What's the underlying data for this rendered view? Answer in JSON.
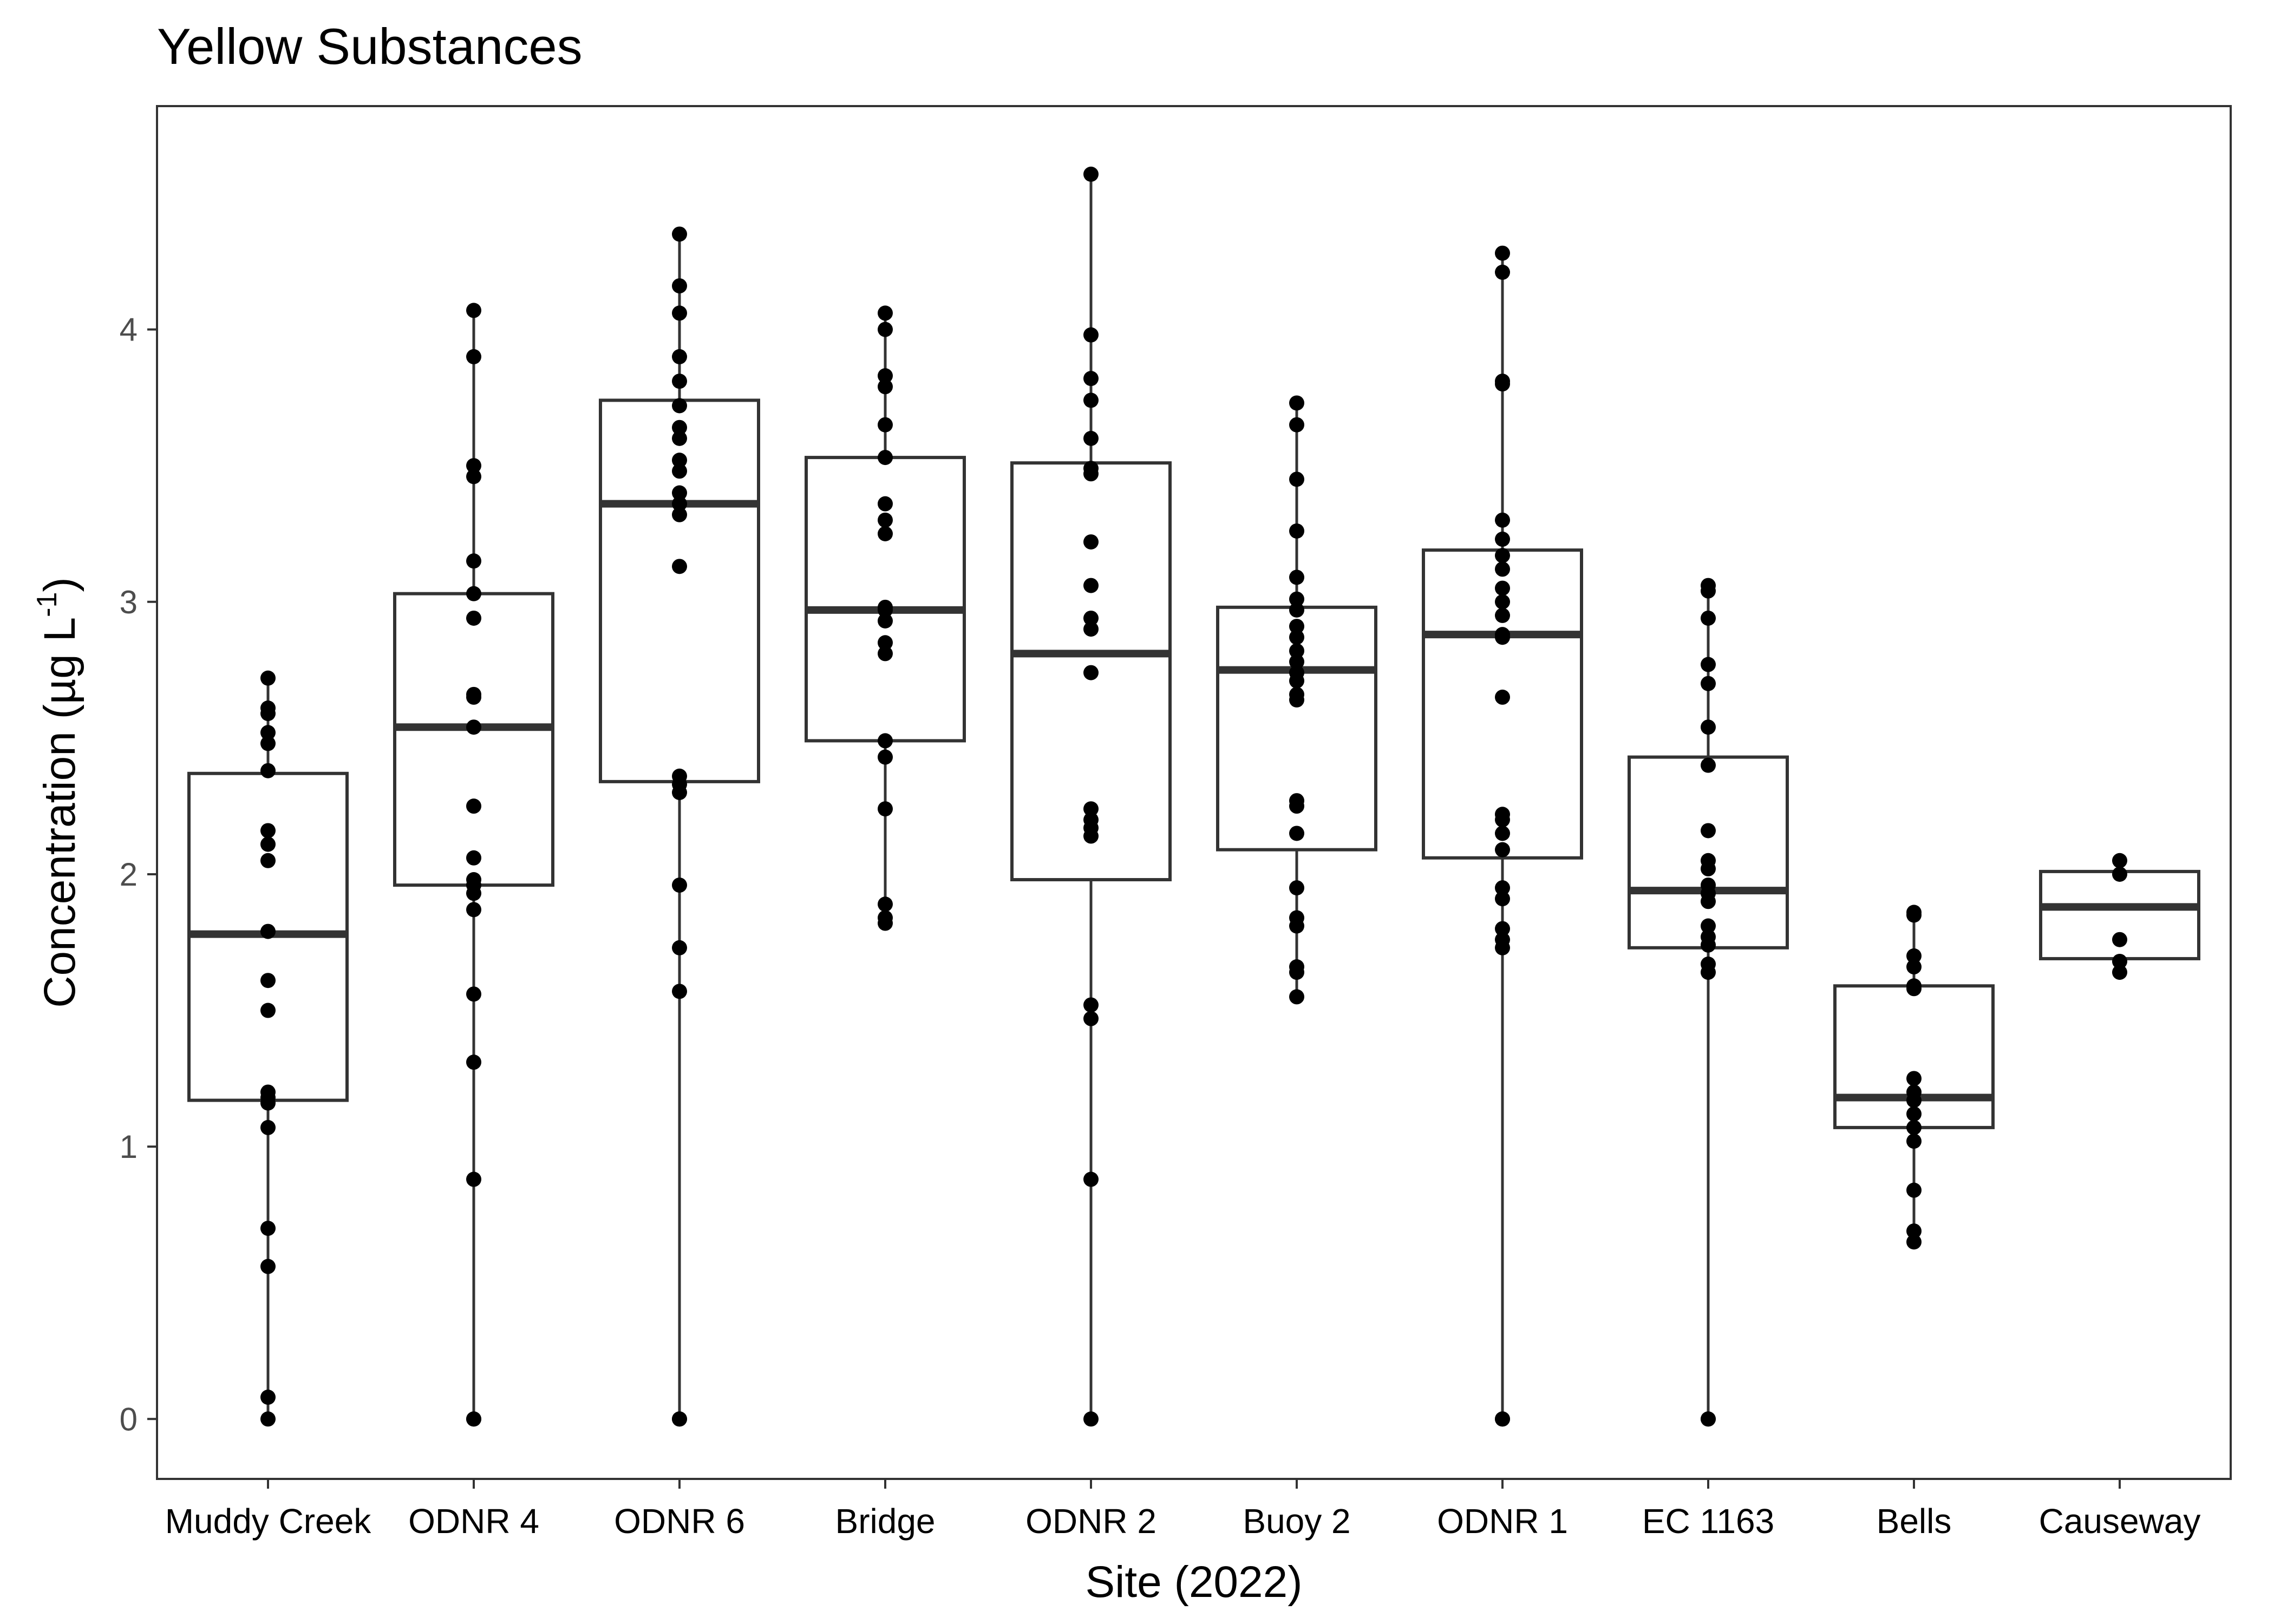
{
  "chart_data": {
    "type": "boxplot",
    "title": "Yellow Substances",
    "xlabel": "Site (2022)",
    "ylabel_main": "Concentration (µg L",
    "ylabel_sup": "-1",
    "ylabel_close": ")",
    "ylim": [
      -0.22,
      4.82
    ],
    "yticks": [
      0,
      1,
      2,
      3,
      4
    ],
    "grid": false,
    "categories": [
      "Muddy Creek",
      "ODNR 4",
      "ODNR 6",
      "Bridge",
      "ODNR 2",
      "Buoy 2",
      "ODNR 1",
      "EC 1163",
      "Bells",
      "Causeway"
    ],
    "boxes": [
      {
        "site": "Muddy Creek",
        "whisker_low": 0.0,
        "q1": 1.17,
        "median": 1.78,
        "q3": 2.37,
        "whisker_high": 2.72
      },
      {
        "site": "ODNR 4",
        "whisker_low": 0.0,
        "q1": 1.96,
        "median": 2.54,
        "q3": 3.03,
        "whisker_high": 4.07
      },
      {
        "site": "ODNR 6",
        "whisker_low": 0.0,
        "q1": 2.34,
        "median": 3.36,
        "q3": 3.74,
        "whisker_high": 4.35
      },
      {
        "site": "Bridge",
        "whisker_low": 1.82,
        "q1": 2.49,
        "median": 2.97,
        "q3": 3.53,
        "whisker_high": 4.06
      },
      {
        "site": "ODNR 2",
        "whisker_low": 0.0,
        "q1": 1.98,
        "median": 2.81,
        "q3": 3.51,
        "whisker_high": 4.57
      },
      {
        "site": "Buoy 2",
        "whisker_low": 1.55,
        "q1": 2.09,
        "median": 2.75,
        "q3": 2.98,
        "whisker_high": 3.73
      },
      {
        "site": "ODNR 1",
        "whisker_low": 0.0,
        "q1": 2.06,
        "median": 2.88,
        "q3": 3.19,
        "whisker_high": 4.28
      },
      {
        "site": "EC 1163",
        "whisker_low": 0.0,
        "q1": 1.73,
        "median": 1.94,
        "q3": 2.43,
        "whisker_high": 3.06
      },
      {
        "site": "Bells",
        "whisker_low": 0.65,
        "q1": 1.07,
        "median": 1.18,
        "q3": 1.59,
        "whisker_high": 1.86
      },
      {
        "site": "Causeway",
        "whisker_low": 1.63,
        "q1": 1.69,
        "median": 1.88,
        "q3": 2.01,
        "whisker_high": 2.05
      }
    ],
    "points": [
      {
        "site": "Muddy Creek",
        "values": [
          2.72,
          2.61,
          2.59,
          2.52,
          2.48,
          2.38,
          2.16,
          2.11,
          2.05,
          1.79,
          1.61,
          1.5,
          1.2,
          1.18,
          1.16,
          1.07,
          0.7,
          0.56,
          0.08,
          0.0
        ]
      },
      {
        "site": "ODNR 4",
        "values": [
          4.07,
          3.9,
          3.5,
          3.46,
          3.15,
          3.03,
          2.94,
          2.66,
          2.65,
          2.54,
          2.25,
          2.06,
          1.98,
          1.96,
          1.93,
          1.87,
          1.56,
          1.31,
          0.88,
          0.0,
          0.0
        ]
      },
      {
        "site": "ODNR 6",
        "values": [
          4.35,
          4.16,
          4.06,
          3.9,
          3.81,
          3.72,
          3.64,
          3.6,
          3.52,
          3.48,
          3.4,
          3.36,
          3.32,
          3.13,
          2.36,
          2.33,
          2.3,
          1.96,
          1.73,
          1.57,
          0.0,
          0.0
        ]
      },
      {
        "site": "Bridge",
        "values": [
          4.06,
          4.0,
          3.83,
          3.79,
          3.65,
          3.53,
          3.36,
          3.3,
          3.25,
          2.98,
          2.97,
          2.93,
          2.85,
          2.81,
          2.49,
          2.43,
          2.24,
          1.89,
          1.84,
          1.82
        ]
      },
      {
        "site": "ODNR 2",
        "values": [
          4.57,
          3.98,
          3.82,
          3.74,
          3.6,
          3.49,
          3.47,
          3.22,
          3.06,
          2.94,
          2.9,
          2.74,
          2.24,
          2.2,
          2.17,
          2.14,
          1.52,
          1.47,
          0.88,
          0.0
        ]
      },
      {
        "site": "Buoy 2",
        "values": [
          3.73,
          3.65,
          3.45,
          3.26,
          3.09,
          3.01,
          2.97,
          2.91,
          2.87,
          2.82,
          2.78,
          2.74,
          2.71,
          2.66,
          2.64,
          2.27,
          2.25,
          2.15,
          1.95,
          1.84,
          1.81,
          1.66,
          1.64,
          1.55
        ]
      },
      {
        "site": "ODNR 1",
        "values": [
          4.28,
          4.21,
          3.81,
          3.8,
          3.3,
          3.23,
          3.17,
          3.12,
          3.05,
          3.0,
          2.95,
          2.88,
          2.87,
          2.65,
          2.22,
          2.2,
          2.15,
          2.09,
          1.95,
          1.91,
          1.8,
          1.76,
          1.73,
          0.0,
          0.0
        ]
      },
      {
        "site": "EC 1163",
        "values": [
          3.06,
          3.04,
          2.94,
          2.77,
          2.7,
          2.54,
          2.4,
          2.16,
          2.05,
          2.02,
          1.96,
          1.93,
          1.9,
          1.81,
          1.77,
          1.74,
          1.67,
          1.64,
          0.0,
          0.0
        ]
      },
      {
        "site": "Bells",
        "values": [
          1.86,
          1.85,
          1.7,
          1.66,
          1.59,
          1.58,
          1.25,
          1.2,
          1.17,
          1.12,
          1.07,
          1.02,
          0.84,
          0.69,
          0.65
        ]
      },
      {
        "site": "Causeway",
        "values": [
          2.05,
          2.0,
          1.76,
          1.68,
          1.64
        ]
      }
    ]
  }
}
